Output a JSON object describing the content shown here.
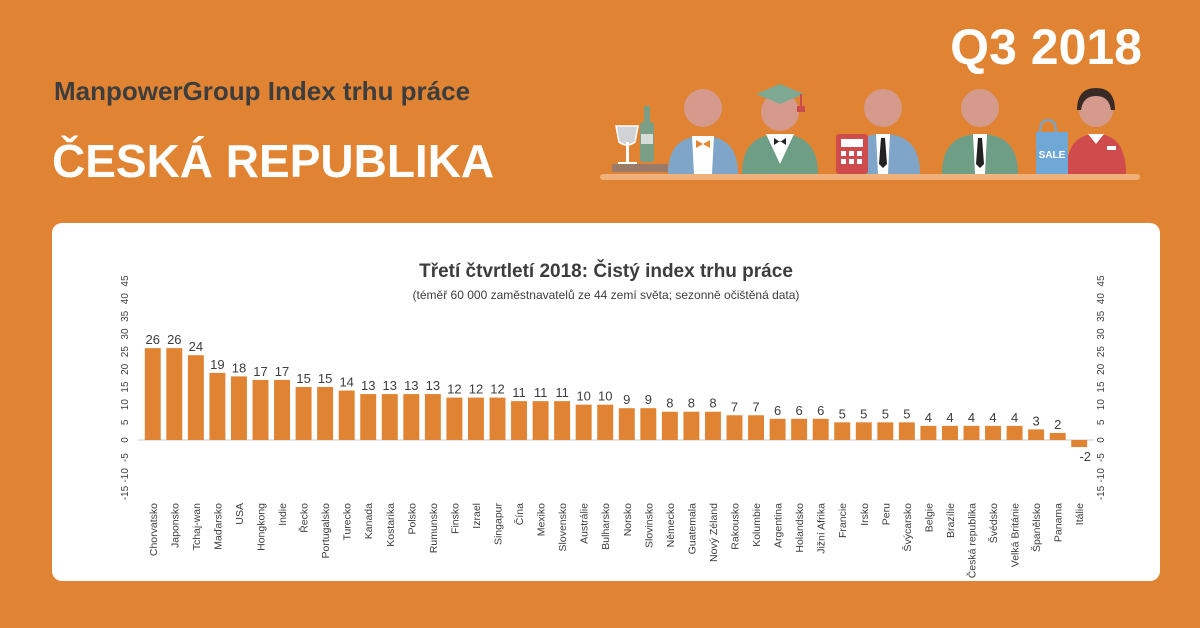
{
  "header": {
    "subtitle": "ManpowerGroup Index trhu práce",
    "country": "ČESKÁ REPUBLIKA",
    "quarter": "Q3 2018"
  },
  "illustration": {
    "sale_tag": "SALE"
  },
  "colors": {
    "background": "#e08433",
    "bar": "#e08433",
    "text": "#3d3d3d"
  },
  "chart_data": {
    "type": "bar",
    "title": "Třetí čtvrtletí 2018: Čistý index trhu práce",
    "subtitle": "(téměř 60 000 zaměstnavatelů ze 44 zemí světa; sezonně očištěná data)",
    "ylim": [
      -15,
      45
    ],
    "yticks": [
      45,
      40,
      35,
      30,
      25,
      20,
      15,
      10,
      5,
      0,
      -5,
      -10,
      -15
    ],
    "grid": false,
    "categories": [
      "Chorvatsko",
      "Japonsko",
      "Tchaj-wan",
      "Maďarsko",
      "USA",
      "Hongkong",
      "Indie",
      "Řecko",
      "Portugalsko",
      "Turecko",
      "Kanada",
      "Kostarika",
      "Polsko",
      "Rumunsko",
      "Finsko",
      "Izrael",
      "Singapur",
      "Čína",
      "Mexiko",
      "Slovensko",
      "Austrálie",
      "Bulharsko",
      "Norsko",
      "Slovinsko",
      "Německo",
      "Guatemala",
      "Nový Zéland",
      "Rakousko",
      "Kolumbie",
      "Argentina",
      "Holandsko",
      "Jižní Afrika",
      "Francie",
      "Irsko",
      "Peru",
      "Švýcarsko",
      "Belgie",
      "Brazílie",
      "Česká republika",
      "Švédsko",
      "Velká Británie",
      "Španělsko",
      "Panama",
      "Itálie"
    ],
    "values": [
      26,
      26,
      24,
      19,
      18,
      17,
      17,
      15,
      15,
      14,
      13,
      13,
      13,
      13,
      12,
      12,
      12,
      11,
      11,
      11,
      10,
      10,
      9,
      9,
      8,
      8,
      8,
      7,
      7,
      6,
      6,
      6,
      5,
      5,
      5,
      5,
      4,
      4,
      4,
      4,
      4,
      3,
      2,
      -2
    ]
  }
}
